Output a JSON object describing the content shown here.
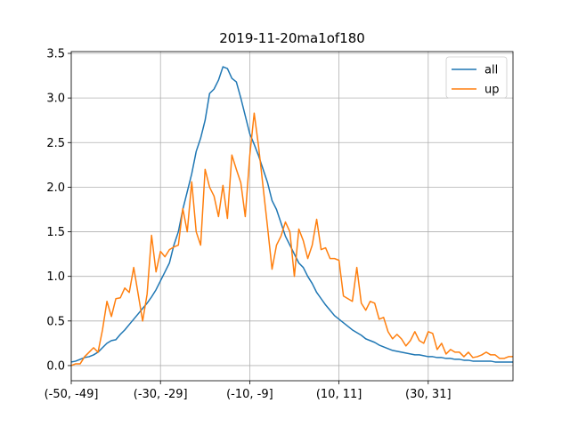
{
  "chart_data": {
    "type": "line",
    "title": "2019-11-20ma1of180",
    "xlabel": "",
    "ylabel": "",
    "x_tick_labels": [
      "(-50, -49]",
      "(-30, -29]",
      "(-10, -9]",
      "(10, 11]",
      "(30, 31]"
    ],
    "x_tick_positions": [
      0,
      20,
      40,
      60,
      80
    ],
    "xlim": [
      0,
      99
    ],
    "ylim": [
      -0.17,
      3.52
    ],
    "y_ticks": [
      0.0,
      0.5,
      1.0,
      1.5,
      2.0,
      2.5,
      3.0,
      3.5
    ],
    "y_tick_labels": [
      "0.0",
      "0.5",
      "1.0",
      "1.5",
      "2.0",
      "2.5",
      "3.0",
      "3.5"
    ],
    "grid": true,
    "legend_position": "top-right",
    "series": [
      {
        "name": "all",
        "color": "#1f77b4",
        "values": [
          0.04,
          0.05,
          0.07,
          0.09,
          0.1,
          0.12,
          0.15,
          0.2,
          0.25,
          0.28,
          0.29,
          0.35,
          0.4,
          0.46,
          0.52,
          0.58,
          0.64,
          0.7,
          0.77,
          0.85,
          0.95,
          1.05,
          1.15,
          1.35,
          1.5,
          1.75,
          1.95,
          2.15,
          2.4,
          2.55,
          2.75,
          3.05,
          3.1,
          3.2,
          3.35,
          3.33,
          3.22,
          3.18,
          3.0,
          2.8,
          2.6,
          2.48,
          2.35,
          2.2,
          2.05,
          1.85,
          1.75,
          1.6,
          1.45,
          1.35,
          1.25,
          1.15,
          1.1,
          1.0,
          0.92,
          0.82,
          0.75,
          0.68,
          0.62,
          0.56,
          0.52,
          0.48,
          0.44,
          0.4,
          0.37,
          0.34,
          0.3,
          0.28,
          0.26,
          0.23,
          0.21,
          0.19,
          0.17,
          0.16,
          0.15,
          0.14,
          0.13,
          0.12,
          0.12,
          0.11,
          0.1,
          0.1,
          0.09,
          0.09,
          0.08,
          0.08,
          0.07,
          0.07,
          0.06,
          0.06,
          0.05,
          0.05,
          0.05,
          0.05,
          0.05,
          0.04,
          0.04,
          0.04,
          0.04,
          0.04
        ]
      },
      {
        "name": "up",
        "color": "#ff7f0e",
        "values": [
          0.0,
          0.02,
          0.02,
          0.1,
          0.15,
          0.2,
          0.15,
          0.4,
          0.72,
          0.55,
          0.75,
          0.76,
          0.87,
          0.82,
          1.1,
          0.8,
          0.5,
          0.8,
          1.46,
          1.05,
          1.28,
          1.22,
          1.3,
          1.33,
          1.35,
          1.76,
          1.5,
          2.06,
          1.5,
          1.35,
          2.2,
          2.0,
          1.9,
          1.67,
          2.02,
          1.65,
          2.36,
          2.2,
          2.05,
          1.67,
          2.35,
          2.83,
          2.45,
          2.0,
          1.55,
          1.08,
          1.35,
          1.45,
          1.61,
          1.5,
          1.0,
          1.53,
          1.4,
          1.2,
          1.35,
          1.64,
          1.3,
          1.32,
          1.2,
          1.2,
          1.18,
          0.78,
          0.75,
          0.72,
          1.1,
          0.7,
          0.62,
          0.72,
          0.7,
          0.52,
          0.54,
          0.38,
          0.3,
          0.35,
          0.3,
          0.22,
          0.28,
          0.38,
          0.28,
          0.25,
          0.38,
          0.36,
          0.18,
          0.25,
          0.13,
          0.18,
          0.15,
          0.15,
          0.1,
          0.15,
          0.09,
          0.1,
          0.12,
          0.15,
          0.12,
          0.12,
          0.08,
          0.08,
          0.1,
          0.1
        ]
      }
    ]
  }
}
